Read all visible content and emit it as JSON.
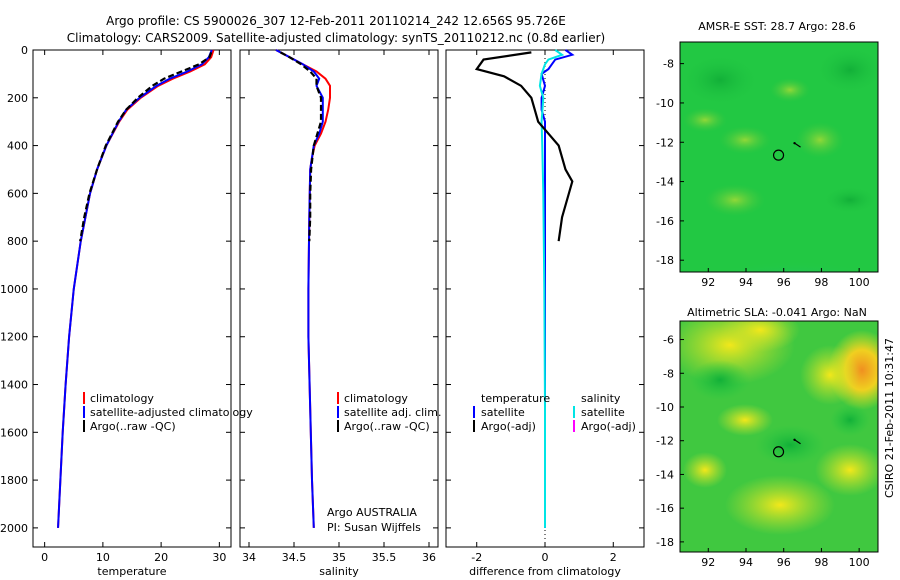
{
  "header": {
    "line1": "Argo profile: CS 5900026_307 12-Feb-2011 20110214_242 12.656S 95.726E",
    "line2": "Climatology: CARS2009. Satellite-adjusted climatology: synTS_20110212.nc (0.8d earlier)"
  },
  "side_label": "CSIRO 21-Feb-2011 10:31:47",
  "colors": {
    "climatology": "#ff0000",
    "satellite": "#0000ff",
    "argo": "#000000",
    "sat_salinity": "#00e5e5",
    "argo_adj_sal": "#ff00ff",
    "map_green": "#22c843",
    "map_blue": "#1a9ef0",
    "map_yellow": "#e6e620"
  },
  "chart_data": [
    {
      "type": "line",
      "id": "temperature",
      "xlabel": "temperature",
      "ylabel": "",
      "xlim": [
        -2,
        32
      ],
      "ylim": [
        2080,
        0
      ],
      "xticks": [
        "0",
        "10",
        "20",
        "30"
      ],
      "yticks": [
        "0",
        "200",
        "400",
        "600",
        "800",
        "1000",
        "1200",
        "1400",
        "1600",
        "1800",
        "2000"
      ],
      "legend": {
        "placement": "bottom-right",
        "entries": [
          "climatology",
          "satellite-adjusted climatology",
          "Argo(..raw -QC)"
        ]
      },
      "series": [
        {
          "name": "climatology",
          "color": "#ff0000",
          "depth": [
            0,
            30,
            60,
            90,
            120,
            150,
            200,
            250,
            300,
            400,
            500,
            600,
            800,
            1000,
            1200,
            1400,
            1600,
            1800,
            2000
          ],
          "values": [
            29.0,
            28.6,
            27.5,
            25.0,
            22.0,
            19.5,
            16.5,
            14.2,
            12.8,
            10.6,
            9.0,
            7.8,
            6.2,
            5.0,
            4.2,
            3.6,
            3.1,
            2.7,
            2.3
          ]
        },
        {
          "name": "satellite-adjusted climatology",
          "color": "#0000ff",
          "depth": [
            0,
            30,
            60,
            90,
            120,
            150,
            200,
            250,
            300,
            400,
            500,
            600,
            800,
            1000,
            1200,
            1400,
            1600,
            1800,
            2000
          ],
          "values": [
            28.7,
            28.2,
            27.0,
            24.5,
            21.5,
            19.2,
            16.3,
            14.0,
            12.7,
            10.6,
            9.0,
            7.8,
            6.2,
            5.0,
            4.2,
            3.6,
            3.1,
            2.7,
            2.3
          ]
        },
        {
          "name": "Argo(..raw -QC)",
          "color": "#000000",
          "depth": [
            10,
            30,
            60,
            90,
            120,
            150,
            200,
            250,
            300,
            400,
            500,
            600,
            700,
            800
          ],
          "values": [
            28.6,
            28.3,
            26.5,
            23.5,
            20.5,
            18.5,
            16.0,
            14.0,
            12.6,
            10.5,
            9.0,
            7.7,
            6.8,
            6.1
          ]
        }
      ]
    },
    {
      "type": "line",
      "id": "salinity",
      "xlabel": "salinity",
      "xlim": [
        33.9,
        36.1
      ],
      "ylim": [
        2080,
        0
      ],
      "xticks": [
        "34",
        "34.5",
        "35",
        "35.5",
        "36"
      ],
      "legend": {
        "placement": "bottom-right",
        "entries": [
          "climatology",
          "satellite adj. clim.",
          "Argo(..raw -QC)"
        ]
      },
      "annotation": [
        "Argo AUSTRALIA",
        "PI: Susan Wijffels"
      ],
      "series": [
        {
          "name": "climatology",
          "color": "#ff0000",
          "depth": [
            0,
            30,
            60,
            90,
            120,
            150,
            200,
            250,
            300,
            350,
            400,
            450,
            500,
            700,
            1000,
            1200,
            1500,
            1800,
            2000
          ],
          "values": [
            34.3,
            34.45,
            34.6,
            34.75,
            34.85,
            34.9,
            34.9,
            34.88,
            34.85,
            34.8,
            34.73,
            34.7,
            34.68,
            34.67,
            34.66,
            34.66,
            34.68,
            34.7,
            34.72
          ]
        },
        {
          "name": "satellite adj. clim.",
          "color": "#0000ff",
          "depth": [
            0,
            30,
            60,
            90,
            120,
            150,
            200,
            250,
            300,
            350,
            400,
            450,
            500,
            700,
            1000,
            1200,
            1500,
            1800,
            2000
          ],
          "values": [
            34.3,
            34.45,
            34.6,
            34.72,
            34.78,
            34.75,
            34.82,
            34.82,
            34.82,
            34.78,
            34.72,
            34.7,
            34.68,
            34.67,
            34.66,
            34.66,
            34.68,
            34.7,
            34.72
          ]
        },
        {
          "name": "Argo(..raw -QC)",
          "color": "#000000",
          "depth": [
            10,
            30,
            60,
            90,
            120,
            150,
            200,
            250,
            300,
            400,
            500,
            600,
            700,
            800
          ],
          "values": [
            34.35,
            34.45,
            34.58,
            34.68,
            34.75,
            34.75,
            34.8,
            34.8,
            34.8,
            34.72,
            34.69,
            34.68,
            34.68,
            34.67
          ]
        }
      ]
    },
    {
      "type": "line",
      "id": "difference",
      "xlabel": "difference from climatology",
      "xlim": [
        -2.9,
        2.9
      ],
      "ylim": [
        2080,
        0
      ],
      "xticks": [
        "-2",
        "0",
        "2"
      ],
      "legend": {
        "placement": "bottom",
        "temperature_entries": [
          "temperature",
          "satellite",
          "Argo(-adj)"
        ],
        "salinity_entries": [
          "salinity",
          "satellite",
          "Argo(-adj)"
        ]
      },
      "series": [
        {
          "name": "temperature satellite",
          "color": "#0000ff",
          "depth": [
            0,
            20,
            40,
            60,
            80,
            100,
            150,
            200,
            250,
            300,
            400,
            500,
            800,
            1200,
            1600,
            2000
          ],
          "values": [
            0.6,
            0.8,
            0.3,
            0.2,
            0.1,
            -0.1,
            0.0,
            -0.1,
            -0.1,
            0.0,
            0.0,
            0.0,
            0.0,
            0.0,
            0.0,
            0.0
          ]
        },
        {
          "name": "salinity satellite",
          "color": "#00e5e5",
          "depth": [
            0,
            20,
            40,
            60,
            80,
            100,
            150,
            200,
            300,
            400,
            600,
            1000,
            1500,
            2000
          ],
          "values": [
            0.3,
            0.5,
            0.1,
            0.0,
            -0.05,
            -0.1,
            -0.15,
            -0.05,
            -0.1,
            -0.08,
            -0.05,
            -0.02,
            0.0,
            0.0
          ]
        },
        {
          "name": "temperature Argo(-adj)",
          "color": "#000000",
          "depth": [
            10,
            40,
            80,
            110,
            150,
            200,
            250,
            300,
            400,
            500,
            550,
            600,
            700,
            800
          ],
          "values": [
            -0.4,
            -1.8,
            -2.0,
            -1.2,
            -0.7,
            -0.4,
            -0.3,
            -0.2,
            0.4,
            0.6,
            0.8,
            0.7,
            0.5,
            0.4
          ]
        },
        {
          "name": "salinity Argo(-adj)",
          "color": "#ff00ff",
          "depth": [],
          "values": []
        }
      ]
    },
    {
      "type": "heatmap",
      "id": "sst_map",
      "title": "AMSR-E SST: 28.7   Argo: 28.6",
      "xticks": [
        "92",
        "94",
        "96",
        "98",
        "100"
      ],
      "yticks": [
        "-8",
        "-10",
        "-12",
        "-14",
        "-16",
        "-18"
      ],
      "xlim": [
        90.5,
        101
      ],
      "ylim": [
        -18.6,
        -6.9
      ],
      "marker": {
        "lon": 95.726,
        "lat": -12.656
      }
    },
    {
      "type": "heatmap",
      "id": "sla_map",
      "title": "Altimetric SLA: -0.041  Argo: NaN",
      "xticks": [
        "92",
        "94",
        "96",
        "98",
        "100"
      ],
      "yticks": [
        "-6",
        "-8",
        "-10",
        "-12",
        "-14",
        "-16",
        "-18"
      ],
      "xlim": [
        90.5,
        101
      ],
      "ylim": [
        -18.6,
        -4.9
      ],
      "marker": {
        "lon": 95.726,
        "lat": -12.656
      }
    }
  ]
}
